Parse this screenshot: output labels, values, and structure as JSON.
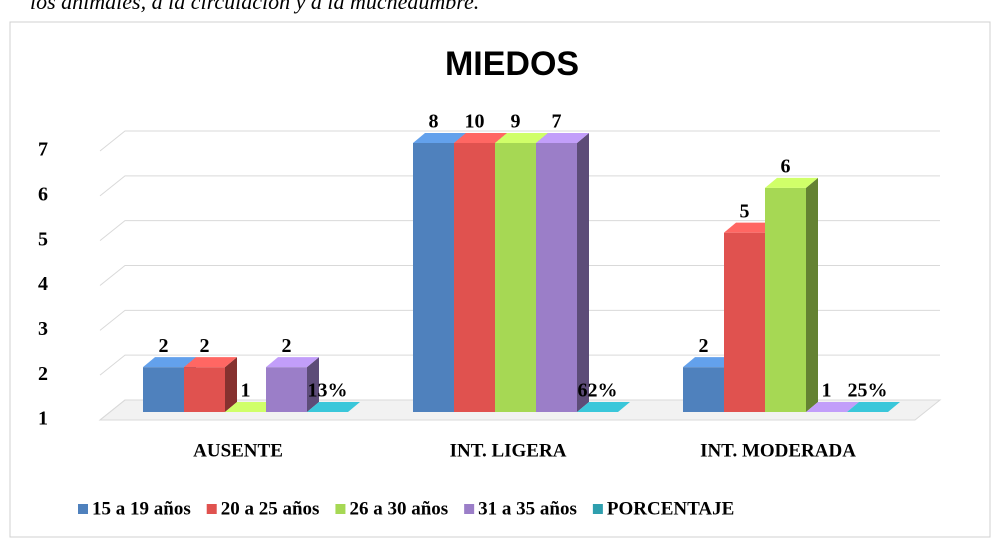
{
  "caption": "los animales, a la circulación y a la muchedumbre.",
  "chart_data": {
    "type": "bar3d",
    "title": "MIEDOS",
    "categories": [
      "AUSENTE",
      "INT. LIGERA",
      "INT. MODERADA"
    ],
    "series": [
      {
        "name": "15 a 19 años",
        "color": "#4f81bd",
        "values": [
          2,
          8,
          2
        ]
      },
      {
        "name": "20 a 25 años",
        "color": "#e0524f",
        "values": [
          2,
          10,
          5
        ]
      },
      {
        "name": "26 a 30  años",
        "color": "#a6d854",
        "values": [
          1,
          9,
          6
        ]
      },
      {
        "name": "31 a 35 años",
        "color": "#9b7ec8",
        "values": [
          2,
          7,
          1
        ]
      },
      {
        "name": "PORCENTAJE",
        "color": "#2e9fae",
        "values": [
          0.13,
          0.62,
          0.25
        ],
        "value_labels": [
          "13%",
          "62%",
          "25%"
        ]
      }
    ],
    "ylim": [
      1,
      7
    ],
    "yticks": [
      1,
      2,
      3,
      4,
      5,
      6,
      7
    ],
    "grid": true,
    "legend": "bottom"
  }
}
